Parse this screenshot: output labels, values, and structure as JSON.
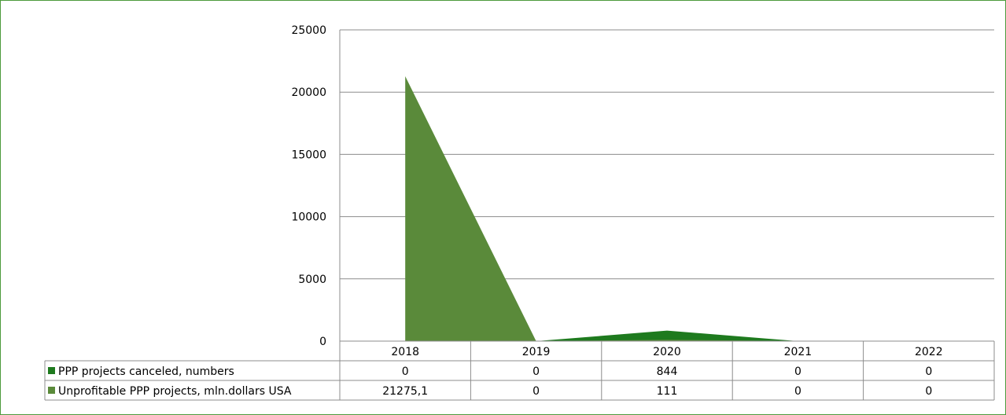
{
  "chart_data": {
    "type": "area",
    "categories": [
      "2018",
      "2019",
      "2020",
      "2021",
      "2022"
    ],
    "series": [
      {
        "name": "PPP projects canceled, numbers",
        "color": "#1e7a1e",
        "values": [
          0,
          0,
          844,
          0,
          0
        ],
        "display": [
          "0",
          "0",
          "844",
          "0",
          "0"
        ]
      },
      {
        "name": "Unprofitable PPP projects, mln.dollars USA",
        "color": "#5a8a3a",
        "values": [
          21275.1,
          0,
          111,
          0,
          0
        ],
        "display": [
          "21275,1",
          "0",
          "111",
          "0",
          "0"
        ]
      }
    ],
    "yticks": [
      "0",
      "5000",
      "10000",
      "15000",
      "20000",
      "25000"
    ],
    "ylim": [
      0,
      25000
    ],
    "grid": true,
    "legend": "data-table"
  }
}
